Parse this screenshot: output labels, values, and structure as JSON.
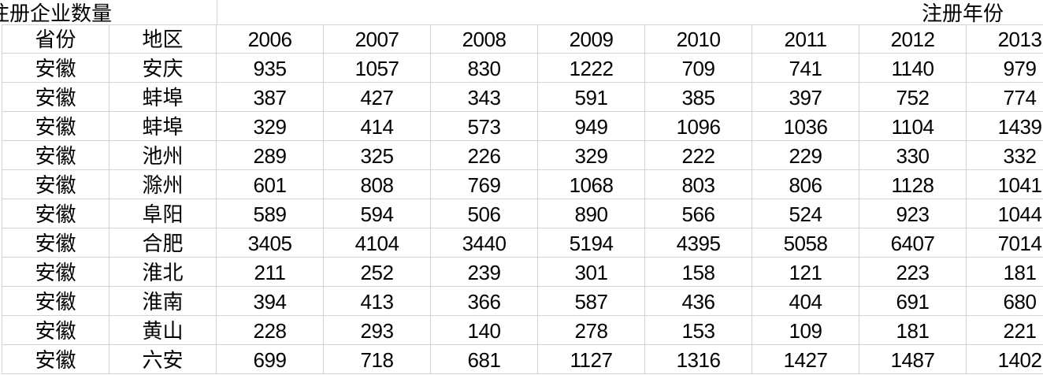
{
  "title_left": "注册企业数量",
  "title_right": "注册年份",
  "headers": [
    "省份",
    "地区",
    "2006",
    "2007",
    "2008",
    "2009",
    "2010",
    "2011",
    "2012",
    "2013"
  ],
  "rows": [
    [
      "安徽",
      "安庆",
      "935",
      "1057",
      "830",
      "1222",
      "709",
      "741",
      "1140",
      "979"
    ],
    [
      "安徽",
      "蚌埠",
      "387",
      "427",
      "343",
      "591",
      "385",
      "397",
      "752",
      "774"
    ],
    [
      "安徽",
      "蚌埠",
      "329",
      "414",
      "573",
      "949",
      "1096",
      "1036",
      "1104",
      "1439"
    ],
    [
      "安徽",
      "池州",
      "289",
      "325",
      "226",
      "329",
      "222",
      "229",
      "330",
      "332"
    ],
    [
      "安徽",
      "滁州",
      "601",
      "808",
      "769",
      "1068",
      "803",
      "806",
      "1128",
      "1041"
    ],
    [
      "安徽",
      "阜阳",
      "589",
      "594",
      "506",
      "890",
      "566",
      "524",
      "923",
      "1044"
    ],
    [
      "安徽",
      "合肥",
      "3405",
      "4104",
      "3440",
      "5194",
      "4395",
      "5058",
      "6407",
      "7014"
    ],
    [
      "安徽",
      "淮北",
      "211",
      "252",
      "239",
      "301",
      "158",
      "121",
      "223",
      "181"
    ],
    [
      "安徽",
      "淮南",
      "394",
      "413",
      "366",
      "587",
      "436",
      "404",
      "691",
      "680"
    ],
    [
      "安徽",
      "黄山",
      "228",
      "293",
      "140",
      "278",
      "153",
      "109",
      "181",
      "221"
    ],
    [
      "安徽",
      "六安",
      "699",
      "718",
      "681",
      "1127",
      "1316",
      "1427",
      "1487",
      "1402"
    ]
  ]
}
